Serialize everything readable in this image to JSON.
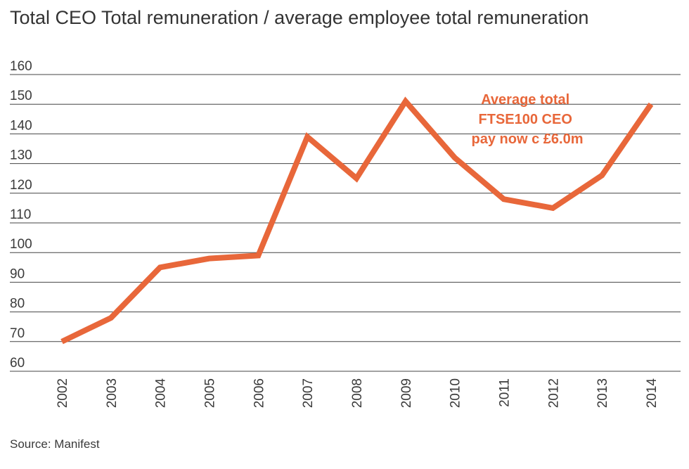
{
  "title": "Total CEO Total remuneration / average employee total remuneration",
  "source": "Source: Manifest",
  "annotation": [
    "Average total",
    "FTSE100 CEO",
    "pay now c £6.0m"
  ],
  "colors": {
    "line": "#E8673A",
    "grid": "#444444",
    "text": "#3a3a3a"
  },
  "chart_data": {
    "type": "line",
    "title": "Total CEO Total remuneration / average employee total remuneration",
    "xlabel": "",
    "ylabel": "",
    "categories": [
      "2002",
      "2003",
      "2004",
      "2005",
      "2006",
      "2007",
      "2008",
      "2009",
      "2010",
      "2011",
      "2012",
      "2013",
      "2014"
    ],
    "values": [
      70,
      78,
      95,
      98,
      99,
      139,
      125,
      151,
      132,
      118,
      115,
      126,
      150
    ],
    "ylim": [
      60,
      160
    ],
    "yticks": [
      60,
      70,
      80,
      90,
      100,
      110,
      120,
      130,
      140,
      150,
      160
    ],
    "grid": "horizontal",
    "legend": "none"
  }
}
